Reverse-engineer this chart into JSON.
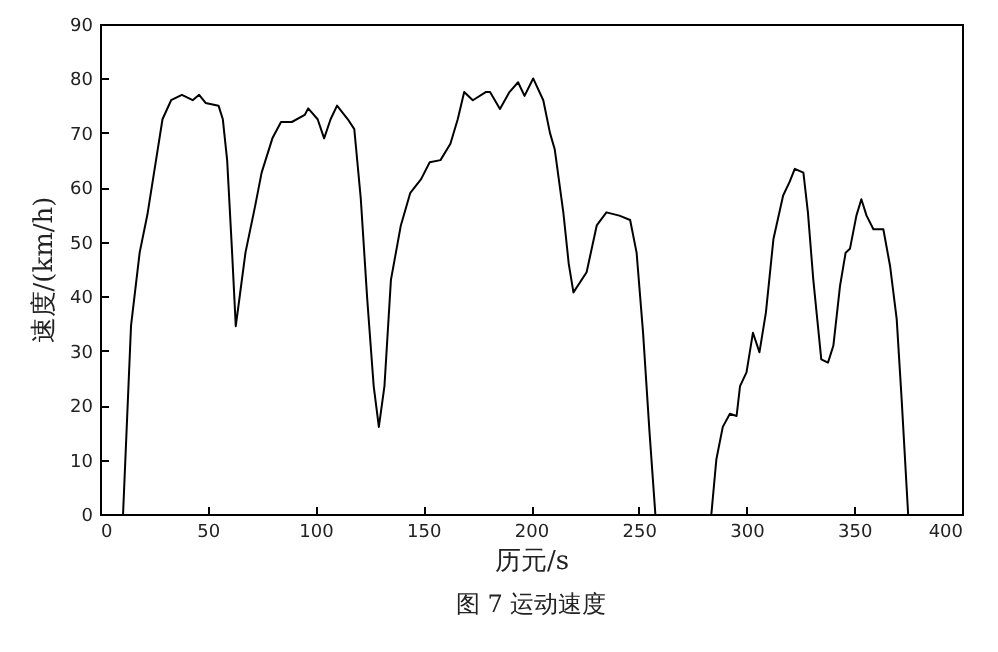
{
  "chart_data": {
    "type": "line",
    "title": "图 7  运动速度",
    "xlabel": "历元/s",
    "ylabel": "速度/(km/h)",
    "xlim": [
      0,
      400
    ],
    "xticks": [
      0,
      50,
      100,
      150,
      200,
      250,
      300,
      350,
      400
    ],
    "ylim": [
      0,
      90
    ],
    "yticks": [
      0,
      10,
      20,
      30,
      40,
      50,
      60,
      70,
      80,
      90
    ],
    "grid": false,
    "line_style": "solid",
    "marker": "none",
    "series": [
      {
        "color": "#000000",
        "x": [
          10.7,
          14.4,
          18.4,
          22,
          26,
          29,
          33,
          38,
          43,
          46,
          49,
          55,
          57,
          59,
          61.3,
          63,
          65,
          67.5,
          72,
          75,
          80,
          84,
          89,
          95,
          96.6,
          101,
          104,
          107,
          110,
          115,
          118,
          121,
          124,
          127,
          129.4,
          132,
          135,
          139.6,
          144,
          149,
          153,
          158,
          162.6,
          166,
          169,
          173,
          179,
          181,
          185.6,
          190,
          194,
          197,
          201,
          205.7,
          208.8,
          211,
          215,
          217.5,
          219.7,
          225.8,
          230.5,
          235,
          241,
          246,
          249,
          252,
          255,
          257.7,
          270,
          283.7,
          286,
          289,
          292.3,
          295.4,
          297,
          300,
          303,
          306,
          309,
          312.5,
          317,
          320,
          322.4,
          326.4,
          328.5,
          331,
          334.7,
          337.8,
          340.3,
          343.4,
          346,
          348,
          351,
          353.3,
          355.7,
          358.9,
          363.5,
          366.6,
          369.7,
          372,
          375
        ],
        "values": [
          0,
          34.6,
          48,
          55,
          65,
          72.5,
          76,
          77,
          76,
          77,
          75.5,
          75,
          72.5,
          65,
          48,
          34.5,
          40.5,
          48,
          56.6,
          62.7,
          69,
          72,
          72,
          73.3,
          74.5,
          72.5,
          69,
          72.5,
          75,
          72.5,
          70.7,
          58,
          39.5,
          23.5,
          16,
          23.5,
          43,
          53,
          59,
          61.5,
          64.6,
          65,
          68,
          72.5,
          77.5,
          76,
          77.5,
          77.5,
          74.4,
          77.5,
          79.3,
          76.8,
          80,
          76,
          70,
          67,
          55.4,
          46,
          40.7,
          44.4,
          53,
          55.4,
          54.8,
          54,
          48,
          33.3,
          15,
          0,
          null,
          0,
          10,
          16,
          18.4,
          18,
          23.5,
          26,
          33.3,
          29.7,
          37,
          50.5,
          58.5,
          61,
          63.4,
          62.7,
          55.4,
          43,
          28.4,
          27.8,
          30.9,
          41.9,
          48,
          48.7,
          54.8,
          57.8,
          54.8,
          52.3,
          52.3,
          45.6,
          35.8,
          21,
          0
        ]
      }
    ]
  }
}
